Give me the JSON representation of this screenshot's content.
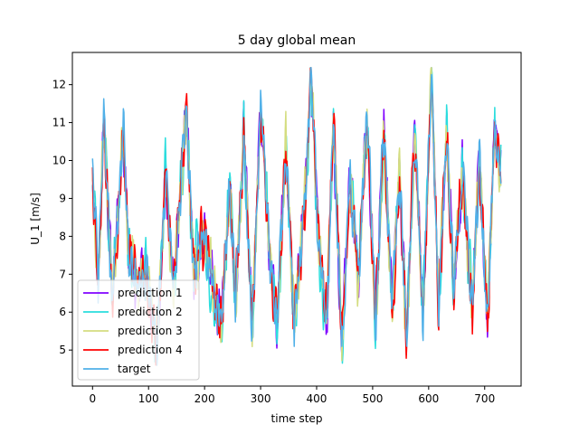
{
  "chart_data": {
    "type": "line",
    "title": "5 day global mean",
    "xlabel": "time step",
    "ylabel": "U_1 [m/s]",
    "xlim": [
      -36,
      765
    ],
    "ylim": [
      4.05,
      12.85
    ],
    "xticks": [
      0,
      100,
      200,
      300,
      400,
      500,
      600,
      700
    ],
    "yticks": [
      5,
      6,
      7,
      8,
      9,
      10,
      11,
      12
    ],
    "legend_position": "lower-left",
    "n_points": 730,
    "anchors": [
      [
        0,
        9.9
      ],
      [
        10,
        6.8
      ],
      [
        20,
        11.2
      ],
      [
        35,
        6.4
      ],
      [
        55,
        10.8
      ],
      [
        65,
        7.6
      ],
      [
        80,
        6.7
      ],
      [
        95,
        7.2
      ],
      [
        115,
        5.0
      ],
      [
        130,
        9.6
      ],
      [
        145,
        6.6
      ],
      [
        155,
        8.8
      ],
      [
        168,
        11.2
      ],
      [
        180,
        7.2
      ],
      [
        200,
        8.0
      ],
      [
        215,
        6.6
      ],
      [
        230,
        5.6
      ],
      [
        245,
        9.4
      ],
      [
        255,
        6.2
      ],
      [
        270,
        10.8
      ],
      [
        285,
        5.5
      ],
      [
        300,
        11.4
      ],
      [
        318,
        7.2
      ],
      [
        330,
        5.8
      ],
      [
        345,
        10.6
      ],
      [
        360,
        5.5
      ],
      [
        380,
        9.0
      ],
      [
        390,
        12.3
      ],
      [
        405,
        7.4
      ],
      [
        418,
        5.9
      ],
      [
        430,
        11.0
      ],
      [
        445,
        5.2
      ],
      [
        460,
        9.6
      ],
      [
        475,
        6.8
      ],
      [
        490,
        11.2
      ],
      [
        505,
        5.8
      ],
      [
        520,
        10.8
      ],
      [
        535,
        6.1
      ],
      [
        548,
        9.8
      ],
      [
        560,
        5.3
      ],
      [
        575,
        10.6
      ],
      [
        590,
        6.0
      ],
      [
        605,
        12.3
      ],
      [
        618,
        6.1
      ],
      [
        632,
        10.8
      ],
      [
        645,
        6.4
      ],
      [
        660,
        9.8
      ],
      [
        678,
        6.0
      ],
      [
        690,
        10.0
      ],
      [
        705,
        5.6
      ],
      [
        718,
        11.0
      ],
      [
        729,
        9.6
      ]
    ],
    "series": [
      {
        "name": "prediction 1",
        "color": "#8000ff",
        "seed": 11,
        "noise": 0.95
      },
      {
        "name": "prediction 2",
        "color": "#2adddd",
        "seed": 23,
        "noise": 1.05
      },
      {
        "name": "prediction 3",
        "color": "#d4dd80",
        "seed": 37,
        "noise": 1.0
      },
      {
        "name": "prediction 4",
        "color": "#ff0000",
        "seed": 53,
        "noise": 1.0
      },
      {
        "name": "target",
        "color": "#50b0e8",
        "seed": 71,
        "noise": 0.85
      }
    ]
  }
}
